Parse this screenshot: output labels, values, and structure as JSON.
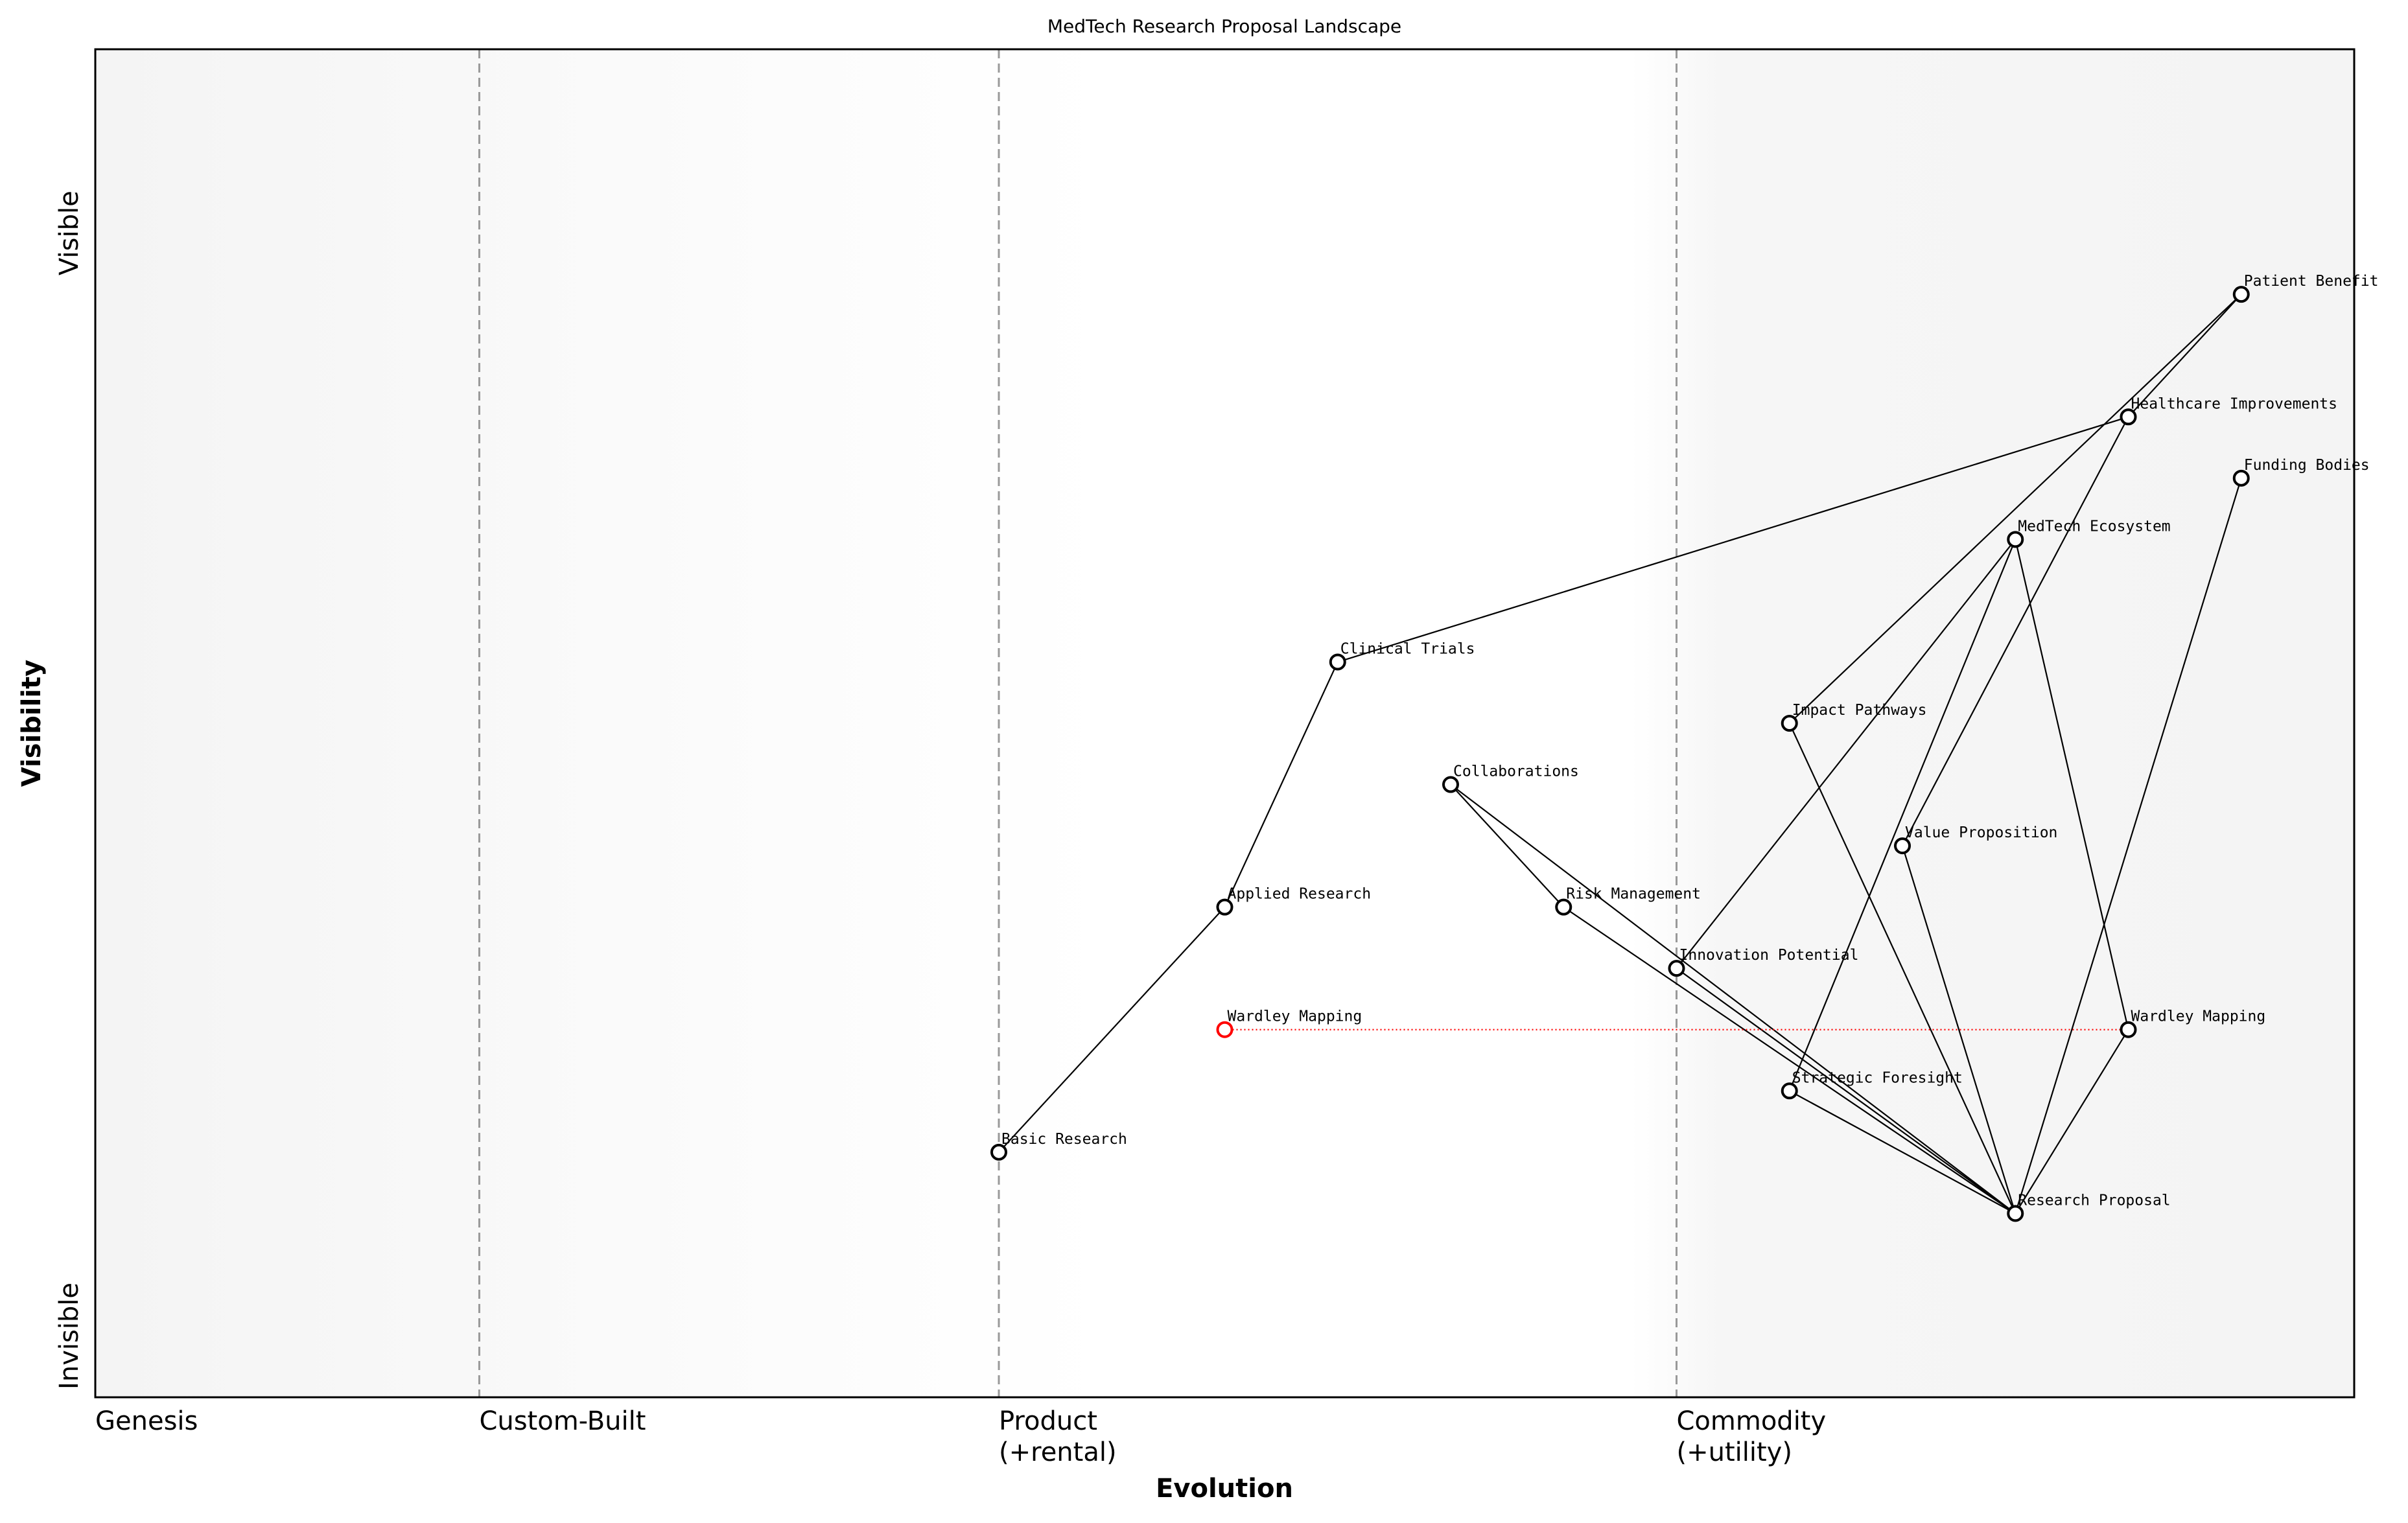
{
  "chart_data": {
    "type": "wardley",
    "title": "MedTech Research Proposal Landscape",
    "x_label": "Evolution",
    "y_label": "Visibility",
    "xlim": [
      0,
      1
    ],
    "ylim": [
      0,
      1.1
    ],
    "xticks": [
      {
        "value": 0,
        "label": "Genesis"
      },
      {
        "value": 0.17,
        "label": "Custom-Built"
      },
      {
        "value": 0.4,
        "label": "Product\n(+rental)"
      },
      {
        "value": 0.7,
        "label": "Commodity\n(+utility)"
      }
    ],
    "yticks": [
      {
        "value": 0.05,
        "label": "Invisible"
      },
      {
        "value": 0.95,
        "label": "Visible"
      }
    ],
    "nodes": [
      {
        "label": "Patient Benefit",
        "x": 0.95,
        "y": 0.9,
        "color": "#000000"
      },
      {
        "label": "Healthcare Improvements",
        "x": 0.9,
        "y": 0.8,
        "color": "#000000"
      },
      {
        "label": "Funding Bodies",
        "x": 0.95,
        "y": 0.75,
        "color": "#000000"
      },
      {
        "label": "MedTech Ecosystem",
        "x": 0.85,
        "y": 0.7,
        "color": "#000000"
      },
      {
        "label": "Clinical Trials",
        "x": 0.55,
        "y": 0.6,
        "color": "#000000"
      },
      {
        "label": "Impact Pathways",
        "x": 0.75,
        "y": 0.55,
        "color": "#000000"
      },
      {
        "label": "Collaborations",
        "x": 0.6,
        "y": 0.5,
        "color": "#000000"
      },
      {
        "label": "Value Proposition",
        "x": 0.8,
        "y": 0.45,
        "color": "#000000"
      },
      {
        "label": "Applied Research",
        "x": 0.5,
        "y": 0.4,
        "color": "#000000"
      },
      {
        "label": "Risk Management",
        "x": 0.65,
        "y": 0.4,
        "color": "#000000"
      },
      {
        "label": "Innovation Potential",
        "x": 0.7,
        "y": 0.35,
        "color": "#000000"
      },
      {
        "label": "Wardley Mapping",
        "x": 0.5,
        "y": 0.3,
        "color": "#ff0000"
      },
      {
        "label": "Wardley Mapping",
        "x": 0.9,
        "y": 0.3,
        "color": "#000000"
      },
      {
        "label": "Strategic Foresight",
        "x": 0.75,
        "y": 0.25,
        "color": "#000000"
      },
      {
        "label": "Basic Research",
        "x": 0.4,
        "y": 0.2,
        "color": "#000000"
      },
      {
        "label": "Research Proposal",
        "x": 0.85,
        "y": 0.15,
        "color": "#000000"
      }
    ],
    "links": [
      [
        0,
        1
      ],
      [
        0,
        5
      ],
      [
        1,
        4
      ],
      [
        1,
        7
      ],
      [
        2,
        15
      ],
      [
        3,
        10
      ],
      [
        3,
        13
      ],
      [
        3,
        12
      ],
      [
        4,
        8
      ],
      [
        8,
        14
      ],
      [
        5,
        15
      ],
      [
        6,
        9
      ],
      [
        6,
        15
      ],
      [
        7,
        15
      ],
      [
        9,
        15
      ],
      [
        10,
        15
      ],
      [
        12,
        15
      ],
      [
        13,
        15
      ]
    ],
    "evolve_links": [
      {
        "source": 11,
        "target": 12,
        "color": "#ff0000"
      }
    ]
  }
}
